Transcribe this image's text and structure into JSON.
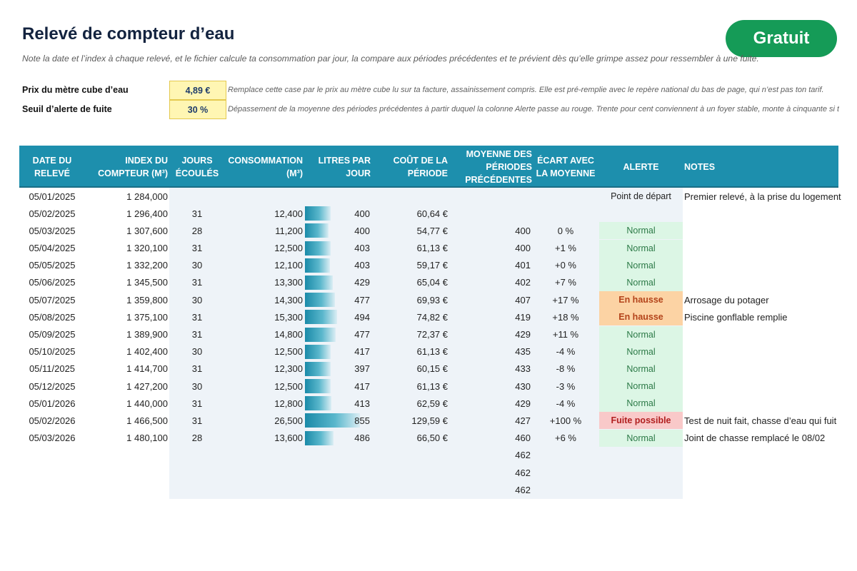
{
  "title": "Relevé de compteur d’eau",
  "badge": "Gratuit",
  "subtitle": "Note la date et l’index à chaque relevé, et le fichier calcule ta consommation par jour, la compare aux périodes précédentes et te prévient dès qu’elle grimpe assez pour ressembler à une fuite.",
  "params": {
    "price": {
      "label": "Prix du mètre cube d’eau",
      "value": "4,89 €",
      "note": "Remplace cette case par le prix au mètre cube lu sur ta facture, assainissement compris. Elle est pré-remplie avec le repère national du bas de page, qui n’est pas ton tarif."
    },
    "threshold": {
      "label": "Seuil d’alerte de fuite",
      "value": "30 %",
      "note": "Dépassement de la moyenne des périodes précédentes à partir duquel la colonne Alerte passe au rouge. Trente pour cent conviennent à un foyer stable, monte à cinquante si tu"
    }
  },
  "columns": [
    "Date du relevé",
    "Index du compteur (m³)",
    "Jours écoulés",
    "Consommation (m³)",
    "Litres par jour",
    "Coût de la période",
    "Moyenne des périodes précédentes",
    "Écart avec la moyenne",
    "Alerte",
    "Notes"
  ],
  "rows": [
    {
      "date": "05/01/2025",
      "index": "1 284,000",
      "days": "",
      "conso": "",
      "conso_value": 0,
      "lpj": "",
      "cost": "",
      "avg": "",
      "diff": "",
      "alert": "Point de départ",
      "alert_type": "start",
      "note": "Premier relevé, à la prise du logement"
    },
    {
      "date": "05/02/2025",
      "index": "1 296,400",
      "days": "31",
      "conso": "12,400",
      "conso_value": 12.4,
      "lpj": "400",
      "cost": "60,64 €",
      "avg": "",
      "diff": "",
      "alert": "",
      "alert_type": "",
      "note": ""
    },
    {
      "date": "05/03/2025",
      "index": "1 307,600",
      "days": "28",
      "conso": "11,200",
      "conso_value": 11.2,
      "lpj": "400",
      "cost": "54,77 €",
      "avg": "400",
      "diff": "0 %",
      "alert": "Normal",
      "alert_type": "normal",
      "note": ""
    },
    {
      "date": "05/04/2025",
      "index": "1 320,100",
      "days": "31",
      "conso": "12,500",
      "conso_value": 12.5,
      "lpj": "403",
      "cost": "61,13 €",
      "avg": "400",
      "diff": "+1 %",
      "alert": "Normal",
      "alert_type": "normal",
      "note": ""
    },
    {
      "date": "05/05/2025",
      "index": "1 332,200",
      "days": "30",
      "conso": "12,100",
      "conso_value": 12.1,
      "lpj": "403",
      "cost": "59,17 €",
      "avg": "401",
      "diff": "+0 %",
      "alert": "Normal",
      "alert_type": "normal",
      "note": ""
    },
    {
      "date": "05/06/2025",
      "index": "1 345,500",
      "days": "31",
      "conso": "13,300",
      "conso_value": 13.3,
      "lpj": "429",
      "cost": "65,04 €",
      "avg": "402",
      "diff": "+7 %",
      "alert": "Normal",
      "alert_type": "normal",
      "note": ""
    },
    {
      "date": "05/07/2025",
      "index": "1 359,800",
      "days": "30",
      "conso": "14,300",
      "conso_value": 14.3,
      "lpj": "477",
      "cost": "69,93 €",
      "avg": "407",
      "diff": "+17 %",
      "alert": "En hausse",
      "alert_type": "hausse",
      "note": "Arrosage du potager"
    },
    {
      "date": "05/08/2025",
      "index": "1 375,100",
      "days": "31",
      "conso": "15,300",
      "conso_value": 15.3,
      "lpj": "494",
      "cost": "74,82 €",
      "avg": "419",
      "diff": "+18 %",
      "alert": "En hausse",
      "alert_type": "hausse",
      "note": "Piscine gonflable remplie"
    },
    {
      "date": "05/09/2025",
      "index": "1 389,900",
      "days": "31",
      "conso": "14,800",
      "conso_value": 14.8,
      "lpj": "477",
      "cost": "72,37 €",
      "avg": "429",
      "diff": "+11 %",
      "alert": "Normal",
      "alert_type": "normal",
      "note": ""
    },
    {
      "date": "05/10/2025",
      "index": "1 402,400",
      "days": "30",
      "conso": "12,500",
      "conso_value": 12.5,
      "lpj": "417",
      "cost": "61,13 €",
      "avg": "435",
      "diff": "-4 %",
      "alert": "Normal",
      "alert_type": "normal",
      "note": ""
    },
    {
      "date": "05/11/2025",
      "index": "1 414,700",
      "days": "31",
      "conso": "12,300",
      "conso_value": 12.3,
      "lpj": "397",
      "cost": "60,15 €",
      "avg": "433",
      "diff": "-8 %",
      "alert": "Normal",
      "alert_type": "normal",
      "note": ""
    },
    {
      "date": "05/12/2025",
      "index": "1 427,200",
      "days": "30",
      "conso": "12,500",
      "conso_value": 12.5,
      "lpj": "417",
      "cost": "61,13 €",
      "avg": "430",
      "diff": "-3 %",
      "alert": "Normal",
      "alert_type": "normal",
      "note": ""
    },
    {
      "date": "05/01/2026",
      "index": "1 440,000",
      "days": "31",
      "conso": "12,800",
      "conso_value": 12.8,
      "lpj": "413",
      "cost": "62,59 €",
      "avg": "429",
      "diff": "-4 %",
      "alert": "Normal",
      "alert_type": "normal",
      "note": ""
    },
    {
      "date": "05/02/2026",
      "index": "1 466,500",
      "days": "31",
      "conso": "26,500",
      "conso_value": 26.5,
      "lpj": "855",
      "cost": "129,59 €",
      "avg": "427",
      "diff": "+100 %",
      "alert": "Fuite possible",
      "alert_type": "fuite",
      "note": "Test de nuit fait, chasse d’eau qui fuit"
    },
    {
      "date": "05/03/2026",
      "index": "1 480,100",
      "days": "28",
      "conso": "13,600",
      "conso_value": 13.6,
      "lpj": "486",
      "cost": "66,50 €",
      "avg": "460",
      "diff": "+6 %",
      "alert": "Normal",
      "alert_type": "normal",
      "note": "Joint de chasse remplacé le 08/02"
    },
    {
      "date": "",
      "index": "",
      "days": "",
      "conso": "",
      "conso_value": 0,
      "lpj": "",
      "cost": "",
      "avg": "462",
      "diff": "",
      "alert": "",
      "alert_type": "",
      "note": ""
    },
    {
      "date": "",
      "index": "",
      "days": "",
      "conso": "",
      "conso_value": 0,
      "lpj": "",
      "cost": "",
      "avg": "462",
      "diff": "",
      "alert": "",
      "alert_type": "",
      "note": ""
    },
    {
      "date": "",
      "index": "",
      "days": "",
      "conso": "",
      "conso_value": 0,
      "lpj": "",
      "cost": "",
      "avg": "462",
      "diff": "",
      "alert": "",
      "alert_type": "",
      "note": ""
    }
  ]
}
